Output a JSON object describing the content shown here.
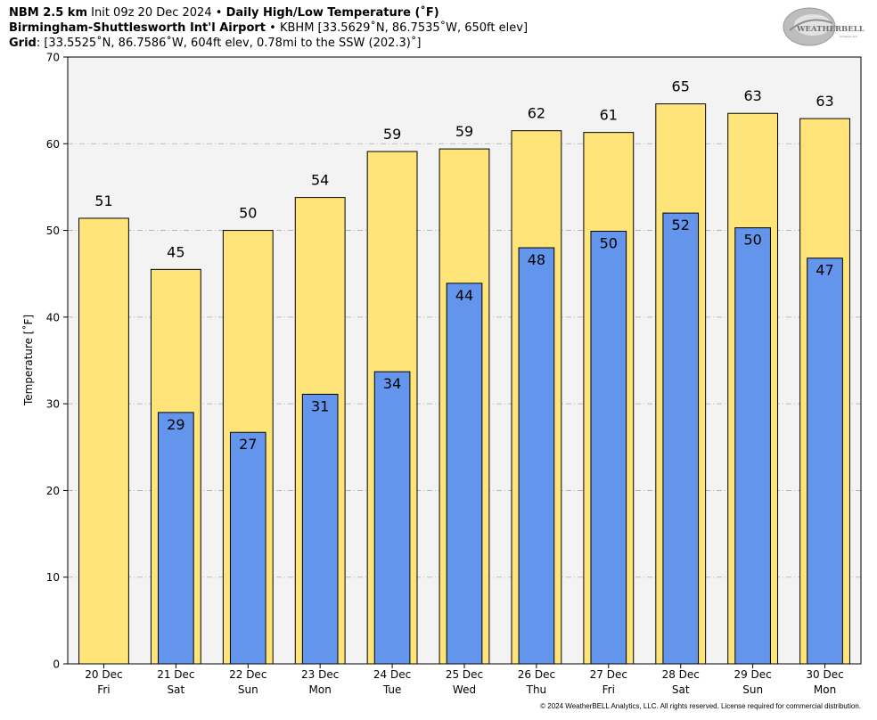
{
  "header": {
    "line1": {
      "model": "NBM 2.5 km",
      "init": "Init 09z 20 Dec 2024",
      "sep": "•",
      "product": "Daily High/Low Temperature (˚F)"
    },
    "line2": {
      "station": "Birmingham-Shuttlesworth Int'l Airport",
      "sep": "•",
      "details": "KBHM [33.5629˚N, 86.7535˚W, 650ft elev]"
    },
    "line3": {
      "label": "Grid",
      "details": ": [33.5525˚N, 86.7586˚W, 604ft elev, 0.78mi to the SSW (202.3)˚]"
    }
  },
  "logo": {
    "text": "WEATHERBELL",
    "sub": "Analytics LLC",
    "icon": "weatherbell-swirl-logo"
  },
  "copyright": "© 2024 WeatherBELL Analytics, LLC. All rights reserved. License required for commercial distribution.",
  "colors": {
    "high": "#FFE47A",
    "low": "#6495ED",
    "plot_bg": "#F3F3F3",
    "grid": "#AAAAAA"
  },
  "chart_data": {
    "type": "bar",
    "ylabel": "Temperature [˚F]",
    "ylim": [
      0,
      70
    ],
    "yticks": [
      0,
      10,
      20,
      30,
      40,
      50,
      60,
      70
    ],
    "grid": true,
    "categories": [
      {
        "date": "20 Dec",
        "day": "Fri"
      },
      {
        "date": "21 Dec",
        "day": "Sat"
      },
      {
        "date": "22 Dec",
        "day": "Sun"
      },
      {
        "date": "23 Dec",
        "day": "Mon"
      },
      {
        "date": "24 Dec",
        "day": "Tue"
      },
      {
        "date": "25 Dec",
        "day": "Wed"
      },
      {
        "date": "26 Dec",
        "day": "Thu"
      },
      {
        "date": "27 Dec",
        "day": "Fri"
      },
      {
        "date": "28 Dec",
        "day": "Sat"
      },
      {
        "date": "29 Dec",
        "day": "Sun"
      },
      {
        "date": "30 Dec",
        "day": "Mon"
      }
    ],
    "series": [
      {
        "key": "high",
        "values": [
          51.4,
          45.5,
          50.0,
          53.8,
          59.1,
          59.4,
          61.5,
          61.3,
          64.6,
          63.5,
          62.9
        ],
        "labels": [
          "51",
          "45",
          "50",
          "54",
          "59",
          "59",
          "62",
          "61",
          "65",
          "63",
          "63"
        ]
      },
      {
        "key": "low",
        "values": [
          null,
          29.0,
          26.7,
          31.1,
          33.7,
          43.9,
          48.0,
          49.9,
          52.0,
          50.3,
          46.8
        ],
        "labels": [
          null,
          "29",
          "27",
          "31",
          "34",
          "44",
          "48",
          "50",
          "52",
          "50",
          "47"
        ]
      }
    ]
  }
}
